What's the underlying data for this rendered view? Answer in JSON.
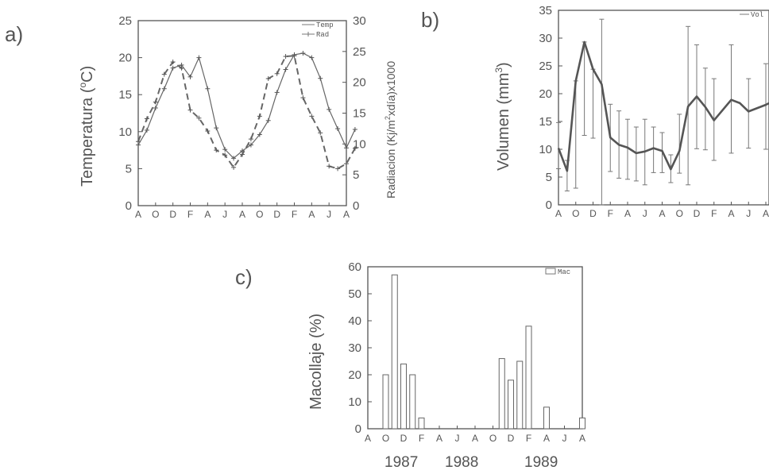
{
  "chart_data": [
    {
      "panel_label": "a)",
      "type": "line",
      "x_tick_labels": [
        "A",
        "O",
        "D",
        "F",
        "A",
        "J",
        "A",
        "O",
        "D",
        "F",
        "A",
        "J",
        "A"
      ],
      "ylabel": "Temperatura (°C)",
      "ylabel_left_text": "Temperatura (",
      "ylabel_left_deg": "o",
      "ylabel_left_unit": "C)",
      "ylim": [
        0,
        25
      ],
      "y_ticks": [
        0,
        5,
        10,
        15,
        20,
        25
      ],
      "ylabel_right": "Radiacion (Kj/m²xdía)x1000",
      "ylabel_right_a": "Radiacion (Kj/m",
      "ylabel_right_sup": "2",
      "ylabel_right_b": "xdía)x1000",
      "ylim_right": [
        0,
        30
      ],
      "y_ticks_right": [
        0,
        5,
        10,
        15,
        20,
        25,
        30
      ],
      "series": [
        {
          "name": "Temp",
          "axis": "left",
          "style": "solid",
          "x": [
            0,
            0.5,
            1,
            1.5,
            2,
            2.5,
            3,
            3.5,
            4,
            4.5,
            5,
            5.5,
            6,
            6.5,
            7,
            7.5,
            8,
            8.5,
            9,
            9.5,
            10,
            10.5,
            11,
            11.5,
            12,
            12.5
          ],
          "y": [
            8.2,
            10.2,
            13.2,
            15.8,
            18.6,
            19.0,
            17.4,
            20.0,
            15.8,
            10.5,
            7.6,
            6.4,
            7.4,
            8.2,
            9.6,
            11.5,
            15.3,
            18.4,
            20.4,
            20.6,
            20.0,
            17.2,
            13.0,
            10.4,
            7.8,
            10.3
          ]
        },
        {
          "name": "Rad",
          "axis": "right",
          "style": "dashed",
          "x": [
            0,
            0.5,
            1,
            1.5,
            2,
            2.5,
            3,
            3.5,
            4,
            4.5,
            5,
            5.5,
            6,
            6.5,
            7,
            7.5,
            8,
            8.5,
            9,
            9.5,
            10,
            10.5,
            11,
            11.5,
            12,
            12.5
          ],
          "y": [
            10.4,
            14.1,
            16.8,
            21.3,
            23.3,
            22.3,
            15.5,
            14.2,
            12.1,
            9.0,
            8.2,
            6.2,
            8.3,
            10.8,
            14.5,
            20.6,
            21.4,
            24.2,
            24.3,
            17.5,
            14.5,
            11.8,
            6.4,
            6.0,
            6.8,
            9.3
          ]
        }
      ],
      "legend": [
        "Temp",
        "Rad"
      ],
      "legend_position": "top-right"
    },
    {
      "panel_label": "b)",
      "type": "line",
      "x_tick_labels": [
        "A",
        "O",
        "D",
        "F",
        "A",
        "J",
        "A",
        "O",
        "D",
        "F",
        "A",
        "J",
        "A"
      ],
      "ylabel": "Volumen (mm³)",
      "ylabel_a": "Volumen (mm",
      "ylabel_sup": "3",
      "ylabel_b": ")",
      "ylim": [
        0,
        35
      ],
      "y_ticks": [
        0,
        5,
        10,
        15,
        20,
        25,
        30,
        35
      ],
      "series": [
        {
          "name": "Vol",
          "style": "thick-solid",
          "x": [
            0,
            0.5,
            1,
            1.5,
            2,
            2.5,
            3,
            3.5,
            4,
            4.5,
            5,
            5.5,
            6,
            6.5,
            7,
            7.5,
            8,
            8.5,
            9,
            10,
            10.5,
            11,
            12,
            12.5
          ],
          "y": [
            10.2,
            6.1,
            22.3,
            29.3,
            24.4,
            21.7,
            12.1,
            10.8,
            10.3,
            9.3,
            9.6,
            10.2,
            9.7,
            6.4,
            9.7,
            17.7,
            19.5,
            17.6,
            15.2,
            18.9,
            18.3,
            16.8,
            18.0,
            18.8
          ],
          "err_lo": [
            6.5,
            2.5,
            3.0,
            12.5,
            12.0,
            0,
            6.0,
            4.8,
            4.6,
            4.3,
            3.6,
            5.8,
            5.8,
            4.0,
            5.7,
            3.6,
            10.1,
            9.9,
            8.0,
            9.3,
            0,
            10.2,
            10.0,
            0
          ],
          "err_hi": [
            14.8,
            8.0,
            22.3,
            29.3,
            24.4,
            33.4,
            18.1,
            16.9,
            15.4,
            14.0,
            15.4,
            14.0,
            13.0,
            9.0,
            16.3,
            32.1,
            28.8,
            24.6,
            22.7,
            28.8,
            0,
            22.7,
            25.4,
            0
          ]
        }
      ],
      "legend": [
        "Vol"
      ],
      "legend_text": "Vol",
      "legend_position": "top-right"
    },
    {
      "panel_label": "c)",
      "type": "bar",
      "x_tick_labels": [
        "A",
        "O",
        "D",
        "F",
        "A",
        "J",
        "A",
        "O",
        "D",
        "F",
        "A",
        "J",
        "A"
      ],
      "year_labels": [
        "1987",
        "1988",
        "1989"
      ],
      "ylabel": "Macollaje (%)",
      "ylim": [
        0,
        60
      ],
      "y_ticks": [
        0,
        10,
        20,
        30,
        40,
        50,
        60
      ],
      "series": [
        {
          "name": "Mac",
          "x": [
            1,
            1.5,
            2,
            2.5,
            3,
            7.5,
            8,
            8.5,
            9,
            10,
            12
          ],
          "values": [
            20,
            57,
            24,
            20,
            4,
            26,
            18,
            25,
            38,
            8,
            4
          ]
        }
      ],
      "legend": [
        "Mac"
      ],
      "legend_text": "Mac",
      "legend_position": "top-right"
    }
  ]
}
